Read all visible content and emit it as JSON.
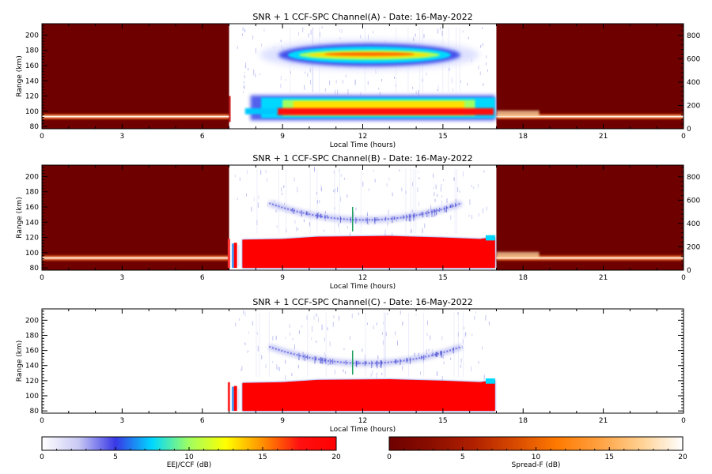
{
  "chart_data": [
    {
      "type": "heatmap",
      "title": "SNR + 1 CCF-SPC Channel(A) - Date: 16-May-2022",
      "xlabel": "Local Time (hours)",
      "ylabel": "Range (km)",
      "xlim": [
        0,
        24
      ],
      "ylim": [
        77,
        215
      ],
      "y2lim": [
        0,
        900
      ],
      "xticks": [
        "0",
        "3",
        "6",
        "9",
        "12",
        "15",
        "18",
        "21",
        "0"
      ],
      "yticks": [
        "80",
        "100",
        "120",
        "140",
        "160",
        "180",
        "200"
      ],
      "y2ticks": [
        "0",
        "200",
        "400",
        "600",
        "800"
      ],
      "night_background": true,
      "day_window": [
        7.0,
        17.0
      ],
      "features": [
        {
          "kind": "sporadic-layer",
          "x": [
            0,
            7
          ],
          "y": 93,
          "dB": 15
        },
        {
          "kind": "sporadic-layer",
          "x": [
            17,
            24
          ],
          "y": 93,
          "dB": 15
        },
        {
          "kind": "echo-region",
          "x": [
            7.5,
            16.9
          ],
          "y": [
            85,
            120
          ],
          "peak_dB": 20
        },
        {
          "kind": "echo-region",
          "x": [
            9.2,
            15.3
          ],
          "y": [
            158,
            190
          ],
          "peak_dB": 14
        }
      ]
    },
    {
      "type": "heatmap",
      "title": "SNR + 1 CCF-SPC Channel(B) - Date: 16-May-2022",
      "xlabel": "Local Time (hours)",
      "ylabel": "Range (km)",
      "xlim": [
        0,
        24
      ],
      "ylim": [
        77,
        215
      ],
      "y2lim": [
        0,
        900
      ],
      "xticks": [
        "0",
        "3",
        "6",
        "9",
        "12",
        "15",
        "18",
        "21",
        "0"
      ],
      "yticks": [
        "80",
        "100",
        "120",
        "140",
        "160",
        "180",
        "200"
      ],
      "y2ticks": [
        "0",
        "200",
        "400",
        "600",
        "800"
      ],
      "night_background": true,
      "day_window": [
        7.0,
        17.0
      ],
      "features": [
        {
          "kind": "sporadic-layer",
          "x": [
            0,
            7
          ],
          "y": 93,
          "dB": 15
        },
        {
          "kind": "sporadic-layer",
          "x": [
            17,
            24
          ],
          "y": 93,
          "dB": 15
        },
        {
          "kind": "echo-region",
          "x": [
            7.5,
            16.9
          ],
          "y": [
            80,
            122
          ],
          "peak_dB": 20
        },
        {
          "kind": "arc",
          "x": [
            8.5,
            15.7
          ],
          "y": [
            140,
            165
          ],
          "peak_dB": 4
        }
      ]
    },
    {
      "type": "heatmap",
      "title": "SNR + 1 CCF-SPC Channel(C) - Date: 16-May-2022",
      "xlabel": "Local Time (hours)",
      "ylabel": "Range (km)",
      "xlim": [
        0,
        24
      ],
      "ylim": [
        77,
        215
      ],
      "xticks": [
        "0",
        "3",
        "6",
        "9",
        "12",
        "15",
        "18",
        "21",
        "0"
      ],
      "yticks": [
        "80",
        "100",
        "120",
        "140",
        "160",
        "180",
        "200"
      ],
      "night_background": false,
      "day_window": [
        7.0,
        17.0
      ],
      "features": [
        {
          "kind": "echo-region",
          "x": [
            7.5,
            16.9
          ],
          "y": [
            80,
            122
          ],
          "peak_dB": 20
        },
        {
          "kind": "arc",
          "x": [
            8.5,
            15.7
          ],
          "y": [
            140,
            165
          ],
          "peak_dB": 4
        }
      ]
    }
  ],
  "colorbars": [
    {
      "label": "EEJ/CCF (dB)",
      "ticks": [
        "0",
        "5",
        "10",
        "15",
        "20"
      ],
      "range": [
        0,
        20
      ],
      "colors": [
        "#ffffff",
        "#c8c8f4",
        "#3838e6",
        "#00d8ff",
        "#a0ff60",
        "#ffff00",
        "#ff9000",
        "#ff1010",
        "#ff0000"
      ]
    },
    {
      "label": "Spread-F (dB)",
      "ticks": [
        "0",
        "5",
        "10",
        "15",
        "20"
      ],
      "range": [
        0,
        20
      ],
      "colors": [
        "#6e0000",
        "#8a0e00",
        "#b02000",
        "#d84a00",
        "#ff7a00",
        "#ffa040",
        "#ffd090",
        "#ffffff"
      ]
    }
  ]
}
